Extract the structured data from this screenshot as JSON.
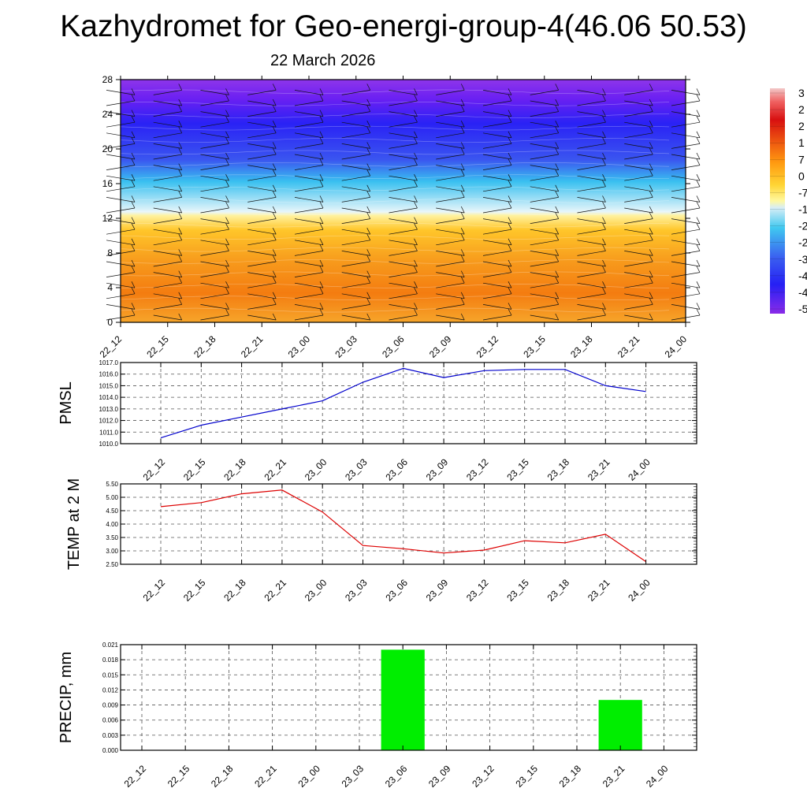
{
  "header": {
    "title": "Kazhydromet for Geo-energi-group-4(46.06 50.53)",
    "subtitle": "22 March 2026"
  },
  "chart_data": [
    {
      "type": "heatmap",
      "name": "temperature-height-section",
      "x_tick_labels": [
        "22_12",
        "22_15",
        "22_18",
        "22_21",
        "23_00",
        "23_03",
        "23_06",
        "23_09",
        "23_12",
        "23_15",
        "23_18",
        "23_21",
        "24_00"
      ],
      "y_tick_labels": [
        "0",
        "4",
        "8",
        "12",
        "16",
        "20",
        "24",
        "28"
      ],
      "ylim": [
        0,
        28
      ],
      "colorbar_labels": [
        "3",
        "2",
        "2",
        "1",
        "7",
        "0",
        "-7",
        "-1",
        "-2",
        "-2",
        "-3",
        "-4",
        "-4",
        "-5"
      ],
      "colors": {
        "warm": "#f57f0f",
        "yellow": "#ffe135",
        "cyan": "#3cc8f0",
        "blue": "#2a2df0",
        "violet": "#8a2be8"
      },
      "wind_barbs": true
    },
    {
      "type": "line",
      "ylabel": "PMSL",
      "x": [
        "22_12",
        "22_15",
        "22_18",
        "22_21",
        "23_00",
        "23_03",
        "23_06",
        "23_09",
        "23_12",
        "23_15",
        "23_18",
        "23_21",
        "24_00"
      ],
      "values": [
        1010.5,
        1011.6,
        1012.3,
        1013.0,
        1013.7,
        1015.3,
        1016.5,
        1015.7,
        1016.3,
        1016.4,
        1016.4,
        1015.0,
        1014.5
      ],
      "ylim": [
        1010.0,
        1017.0
      ],
      "y_tick_labels": [
        "1010.0",
        "1011.0",
        "1012.0",
        "1013.0",
        "1014.0",
        "1015.0",
        "1016.0",
        "1017.0"
      ],
      "line_color": "#0000cc",
      "grid": true
    },
    {
      "type": "line",
      "ylabel": "TEMP at 2 M",
      "x": [
        "22_12",
        "22_15",
        "22_18",
        "22_21",
        "23_00",
        "23_03",
        "23_06",
        "23_09",
        "23_12",
        "23_15",
        "23_18",
        "23_21",
        "24_00"
      ],
      "values": [
        4.65,
        4.8,
        5.13,
        5.27,
        4.45,
        3.2,
        3.08,
        2.92,
        3.03,
        3.38,
        3.3,
        3.62,
        2.6
      ],
      "ylim": [
        2.5,
        5.5
      ],
      "y_tick_labels": [
        "2.50",
        "3.00",
        "3.50",
        "4.00",
        "4.50",
        "5.00",
        "5.50"
      ],
      "line_color": "#dd0000",
      "grid": true
    },
    {
      "type": "bar",
      "ylabel": "PRECIP, mm",
      "categories": [
        "22_12",
        "22_15",
        "22_18",
        "22_21",
        "23_00",
        "23_03",
        "23_06",
        "23_09",
        "23_12",
        "23_15",
        "23_18",
        "23_21",
        "24_00"
      ],
      "values": [
        0,
        0,
        0,
        0,
        0,
        0,
        0.02,
        0,
        0,
        0,
        0,
        0.01,
        0
      ],
      "ylim": [
        0,
        0.021
      ],
      "y_tick_labels": [
        "0.000",
        "0.003",
        "0.006",
        "0.009",
        "0.012",
        "0.015",
        "0.018",
        "0.021"
      ],
      "bar_color": "#00ee00",
      "grid": true
    }
  ]
}
